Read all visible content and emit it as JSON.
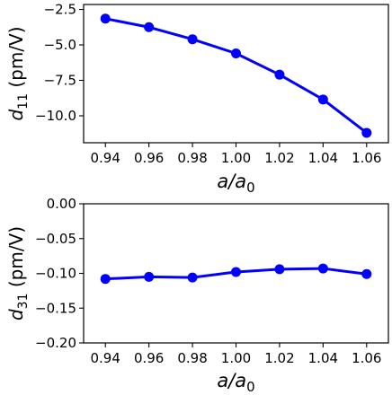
{
  "chart_data": [
    {
      "type": "line",
      "x": [
        0.94,
        0.96,
        0.98,
        1.0,
        1.02,
        1.04,
        1.06
      ],
      "series": [
        {
          "values": [
            -3.15,
            -3.75,
            -4.6,
            -5.6,
            -7.1,
            -8.85,
            -11.2
          ],
          "color": "#0000ff",
          "marker": "circle"
        }
      ],
      "xlabel": {
        "symbol": "a/a",
        "subscript": "0"
      },
      "ylabel": {
        "symbol": "d",
        "subscript": "11",
        "unit": " (pm/V)"
      },
      "xlim": [
        0.93,
        1.07
      ],
      "ylim": [
        -11.9,
        -2.15
      ],
      "xticks": [
        0.94,
        0.96,
        0.98,
        1.0,
        1.02,
        1.04,
        1.06
      ],
      "xtick_labels": [
        "0.94",
        "0.96",
        "0.98",
        "1.00",
        "1.02",
        "1.04",
        "1.06"
      ],
      "yticks": [
        -2.5,
        -5.0,
        -7.5,
        -10.0
      ],
      "ytick_labels": [
        "−2.5",
        "−5.0",
        "−7.5",
        "−10.0"
      ],
      "grid": false,
      "legend": "none"
    },
    {
      "type": "line",
      "x": [
        0.94,
        0.96,
        0.98,
        1.0,
        1.02,
        1.04,
        1.06
      ],
      "series": [
        {
          "values": [
            -0.108,
            -0.105,
            -0.106,
            -0.098,
            -0.094,
            -0.093,
            -0.101
          ],
          "color": "#0000ff",
          "marker": "circle"
        }
      ],
      "xlabel": {
        "symbol": "a/a",
        "subscript": "0"
      },
      "ylabel": {
        "symbol": "d",
        "subscript": "31",
        "unit": " (pm/V)"
      },
      "xlim": [
        0.93,
        1.07
      ],
      "ylim": [
        -0.2,
        0.0
      ],
      "xticks": [
        0.94,
        0.96,
        0.98,
        1.0,
        1.02,
        1.04,
        1.06
      ],
      "xtick_labels": [
        "0.94",
        "0.96",
        "0.98",
        "1.00",
        "1.02",
        "1.04",
        "1.06"
      ],
      "yticks": [
        0.0,
        -0.05,
        -0.1,
        -0.15,
        -0.2
      ],
      "ytick_labels": [
        "0.00",
        "−0.05",
        "−0.10",
        "−0.15",
        "−0.20"
      ],
      "grid": false,
      "legend": "none"
    }
  ]
}
